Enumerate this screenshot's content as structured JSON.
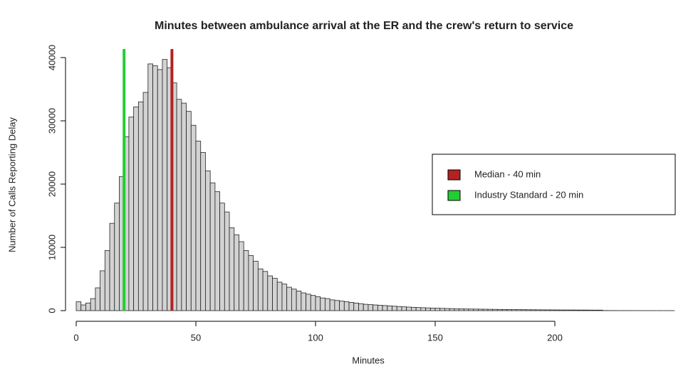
{
  "chart_data": {
    "type": "histogram",
    "title": "Minutes between ambulance arrival at the ER and the crew's return to service",
    "x_label": "Minutes",
    "y_label": "Number of Calls Reporting Delay",
    "bins": [
      0,
      2,
      4,
      6,
      8,
      10,
      12,
      14,
      16,
      18,
      20,
      22,
      24,
      26,
      28,
      30,
      32,
      34,
      36,
      38,
      40,
      42,
      44,
      46,
      48,
      50,
      52,
      54,
      56,
      58,
      60,
      62,
      64,
      66,
      68,
      70,
      72,
      74,
      76,
      78,
      80,
      82,
      84,
      86,
      88,
      90,
      92,
      94,
      96,
      98,
      100,
      102,
      104,
      106,
      108,
      110,
      112,
      114,
      116,
      118,
      120,
      122,
      124,
      126,
      128,
      130,
      132,
      134,
      136,
      138,
      140,
      142,
      144,
      146,
      148,
      150,
      152,
      154,
      156,
      158,
      160,
      162,
      164,
      166,
      168,
      170,
      172,
      174,
      176,
      178,
      180,
      182,
      184,
      186,
      188,
      190,
      192,
      194,
      196,
      198,
      200,
      202,
      204,
      206,
      208,
      210,
      212,
      214,
      216,
      218,
      220,
      222,
      224,
      226,
      228,
      230,
      232,
      234,
      236,
      238,
      240,
      242,
      244,
      246,
      248,
      250
    ],
    "values": [
      1400,
      900,
      1200,
      1900,
      3600,
      6300,
      9500,
      13800,
      17000,
      21200,
      27500,
      30600,
      32200,
      33000,
      34500,
      39000,
      38700,
      38100,
      39700,
      38400,
      36000,
      33400,
      32800,
      31500,
      29300,
      26800,
      25000,
      22100,
      20200,
      18800,
      17000,
      15600,
      13100,
      12000,
      10900,
      9500,
      8700,
      7800,
      6600,
      6200,
      5500,
      5100,
      4500,
      4200,
      3700,
      3400,
      3100,
      2800,
      2600,
      2400,
      2200,
      2000,
      1900,
      1700,
      1600,
      1500,
      1400,
      1300,
      1200,
      1100,
      1000,
      950,
      900,
      850,
      800,
      750,
      700,
      650,
      600,
      560,
      520,
      490,
      460,
      430,
      400,
      380,
      360,
      340,
      320,
      300,
      280,
      260,
      250,
      240,
      230,
      220,
      210,
      200,
      190,
      180,
      170,
      160,
      155,
      150,
      140,
      135,
      130,
      125,
      120,
      115,
      110,
      105,
      100,
      100,
      95,
      90,
      90,
      85,
      80,
      80,
      20,
      15,
      15,
      10,
      10,
      10,
      8,
      8,
      6,
      6,
      5,
      5,
      4,
      4,
      3
    ],
    "color": "#d3d3d3",
    "xlim": [
      0,
      250
    ],
    "xticks": [
      0,
      50,
      100,
      150,
      200
    ],
    "ylim": [
      0,
      40000
    ],
    "yticks": [
      0,
      10000,
      20000,
      30000,
      40000
    ],
    "vlines": [
      {
        "value": 40,
        "color": "#b22222",
        "label": "Median - 40 min"
      },
      {
        "value": 20,
        "color": "#22cc33",
        "label": "Industry Standard - 20 min"
      }
    ]
  }
}
